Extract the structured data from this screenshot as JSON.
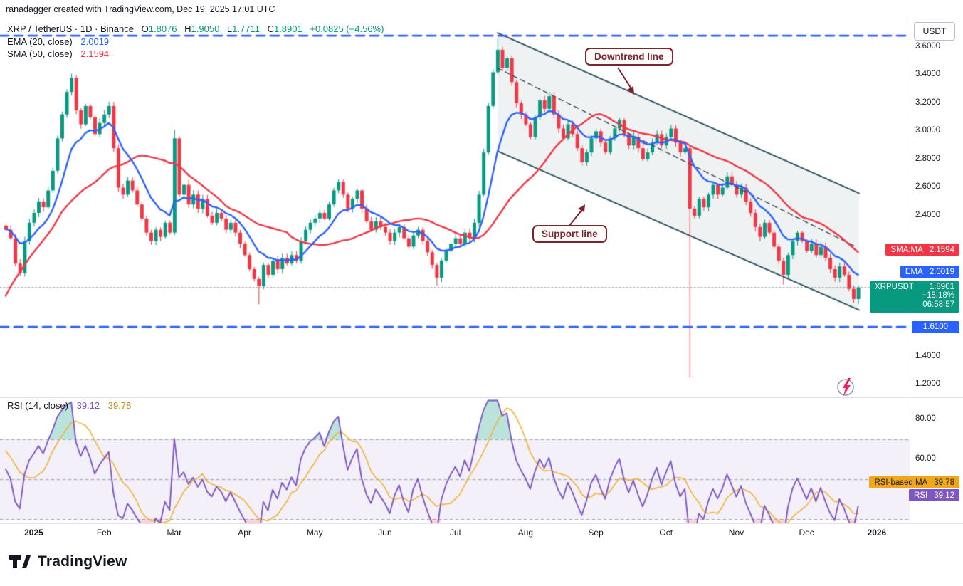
{
  "header": {
    "attribution": "ranadagger created with TradingView.com, Dec 19, 2025 17:01 UTC"
  },
  "legend": {
    "symbol": "XRP / TetherUS · 1D · Binance",
    "ohlc": [
      {
        "k": "O",
        "v": "1.8076"
      },
      {
        "k": "H",
        "v": "1.9050"
      },
      {
        "k": "L",
        "v": "1.7711"
      },
      {
        "k": "C",
        "v": "1.8901"
      }
    ],
    "change": "+0.0825 (+4.56%)",
    "ema": {
      "label": "EMA (20, close)",
      "value": "2.0019"
    },
    "sma": {
      "label": "SMA (50, close)",
      "value": "2.1594"
    }
  },
  "rsi_legend": {
    "label": "RSI (14, close)",
    "rsi_value": "39.12",
    "ma_value": "39.78"
  },
  "annotations": {
    "downtrend_label": "Downtrend line",
    "support_label": "Support line"
  },
  "axis": {
    "currency_button": "USDT",
    "price_ticks": [
      {
        "label": "3.6000",
        "value": 3.6
      },
      {
        "label": "3.4000",
        "value": 3.4
      },
      {
        "label": "3.2000",
        "value": 3.2
      },
      {
        "label": "3.0000",
        "value": 3.0
      },
      {
        "label": "2.8000",
        "value": 2.8
      },
      {
        "label": "2.6000",
        "value": 2.6
      },
      {
        "label": "2.4000",
        "value": 2.4
      },
      {
        "label": "1.4000",
        "value": 1.4
      },
      {
        "label": "1.2000",
        "value": 1.2
      }
    ],
    "rsi_ticks": [
      {
        "label": "80.00",
        "value": 80
      },
      {
        "label": "60.00",
        "value": 60
      }
    ]
  },
  "badges": {
    "sma": {
      "label": "SMA:MA",
      "value": "2.1594",
      "price": 2.1594
    },
    "ema": {
      "label": "EMA",
      "value": "2.0019",
      "price": 2.0019
    },
    "symbol": {
      "label": "XRPUSDT",
      "value": "1.8901",
      "change": "−18.18%",
      "countdown": "06:58:57",
      "price": 1.8901
    },
    "support": {
      "value": "1.6100",
      "price": 1.61
    },
    "rsi_ma": {
      "label": "RSI-based MA",
      "value": "39.78"
    },
    "rsi": {
      "label": "RSI",
      "value": "39.12"
    }
  },
  "watermark": "TradingView",
  "colors": {
    "up": "#089981",
    "down": "#f23645",
    "ema": "#2962ff",
    "sma": "#f23645",
    "level": "#2962ff",
    "rsi": "#7e57c2",
    "rsi_ma": "#f2b233",
    "channel": "#2f5361",
    "channel_mid": "#3a4754",
    "annotation": "#7b2430"
  },
  "chart_data": {
    "type": "candlestick",
    "title": "XRP / TetherUS · 1D · Binance",
    "price_pane": {
      "ylim": [
        1.109,
        3.792
      ],
      "first_open": 2.33,
      "closes": [
        2.3,
        2.24,
        2.06,
        1.99,
        2.22,
        2.35,
        2.42,
        2.5,
        2.46,
        2.58,
        2.72,
        2.95,
        3.12,
        3.28,
        3.38,
        3.15,
        3.05,
        3.18,
        3.1,
        2.98,
        3.06,
        3.12,
        3.18,
        2.88,
        2.6,
        2.55,
        2.65,
        2.58,
        2.48,
        2.38,
        2.28,
        2.22,
        2.3,
        2.25,
        2.35,
        2.28,
        2.95,
        2.55,
        2.62,
        2.48,
        2.55,
        2.45,
        2.52,
        2.4,
        2.35,
        2.42,
        2.38,
        2.3,
        2.35,
        2.28,
        2.2,
        2.12,
        2.02,
        1.95,
        1.9,
        2.05,
        1.98,
        2.08,
        2.02,
        2.1,
        2.06,
        2.12,
        2.08,
        2.22,
        2.3,
        2.35,
        2.38,
        2.42,
        2.38,
        2.48,
        2.58,
        2.64,
        2.55,
        2.45,
        2.52,
        2.58,
        2.45,
        2.36,
        2.3,
        2.36,
        2.32,
        2.28,
        2.22,
        2.28,
        2.32,
        2.24,
        2.18,
        2.26,
        2.3,
        2.22,
        2.14,
        2.05,
        1.96,
        2.08,
        2.15,
        2.2,
        2.24,
        2.2,
        2.28,
        2.24,
        2.35,
        2.55,
        2.85,
        3.18,
        3.42,
        3.58,
        3.45,
        3.52,
        3.35,
        3.2,
        3.12,
        3.05,
        2.96,
        3.1,
        3.22,
        3.16,
        3.25,
        3.12,
        3.02,
        2.95,
        3.05,
        2.98,
        2.88,
        2.78,
        2.85,
        2.95,
        3.0,
        2.92,
        2.85,
        2.95,
        3.02,
        3.08,
        2.98,
        2.9,
        2.96,
        2.88,
        2.8,
        2.85,
        2.92,
        2.98,
        2.9,
        2.96,
        3.02,
        2.92,
        2.85,
        2.88,
        2.45,
        2.4,
        2.52,
        2.46,
        2.55,
        2.62,
        2.55,
        2.6,
        2.68,
        2.62,
        2.55,
        2.6,
        2.5,
        2.42,
        2.32,
        2.25,
        2.35,
        2.28,
        2.18,
        2.08,
        1.98,
        2.12,
        2.22,
        2.28,
        2.22,
        2.15,
        2.2,
        2.12,
        2.18,
        2.1,
        2.02,
        1.96,
        2.04,
        1.98,
        1.88,
        1.8076,
        1.8901
      ],
      "wick_overrides": {
        "14": {
          "h": 3.41
        },
        "36": {
          "h": 3.01
        },
        "54": {
          "l": 1.77
        },
        "92": {
          "l": 1.9
        },
        "105": {
          "h": 3.66
        },
        "146": {
          "l": 1.25
        },
        "166": {
          "l": 1.91
        },
        "181": {
          "l": 1.78
        },
        "182": {
          "o": 1.8076,
          "h": 1.905,
          "l": 1.7711,
          "c": 1.8901
        }
      },
      "indicators": [
        {
          "name": "EMA",
          "length": 20,
          "value": 2.0019,
          "color": "#2962ff",
          "window_samples": 10
        },
        {
          "name": "SMA",
          "length": 50,
          "value": 2.1594,
          "color": "#f23645",
          "window_samples": 25
        }
      ],
      "hlines": [
        {
          "value": 3.68,
          "style": "dashed",
          "color": "#2962ff"
        },
        {
          "value": 1.61,
          "style": "dashed",
          "color": "#2962ff",
          "label": "1.6100"
        }
      ],
      "last_price_line": 1.8901,
      "channel": {
        "upper": {
          "i1": 105,
          "p1": 3.7,
          "i2": 182.2,
          "p2": 2.56
        },
        "lower": {
          "i1": 105,
          "p1": 2.86,
          "i2": 182.2,
          "p2": 1.73
        },
        "mid": {
          "i1": 105,
          "p1": 3.45,
          "i2": 181.5,
          "p2": 2.18
        }
      }
    },
    "rsi_pane": {
      "ylim": [
        27.9,
        91.1
      ],
      "length": 14,
      "window_samples": 7,
      "ma_samples": 7,
      "band": [
        30,
        70
      ],
      "mid_level": 50,
      "current": {
        "rsi": 39.12,
        "ma": 39.78
      }
    },
    "x_axis": {
      "ticks": [
        {
          "label": "2025",
          "i": 6,
          "bold": true
        },
        {
          "label": "Feb",
          "i": 21
        },
        {
          "label": "Mar",
          "i": 36
        },
        {
          "label": "Apr",
          "i": 51
        },
        {
          "label": "May",
          "i": 66
        },
        {
          "label": "Jun",
          "i": 81
        },
        {
          "label": "Jul",
          "i": 96
        },
        {
          "label": "Aug",
          "i": 111
        },
        {
          "label": "Sep",
          "i": 126
        },
        {
          "label": "Oct",
          "i": 141
        },
        {
          "label": "Nov",
          "i": 156
        },
        {
          "label": "Dec",
          "i": 171
        },
        {
          "label": "2026",
          "i": 186,
          "bold": true
        }
      ]
    }
  }
}
